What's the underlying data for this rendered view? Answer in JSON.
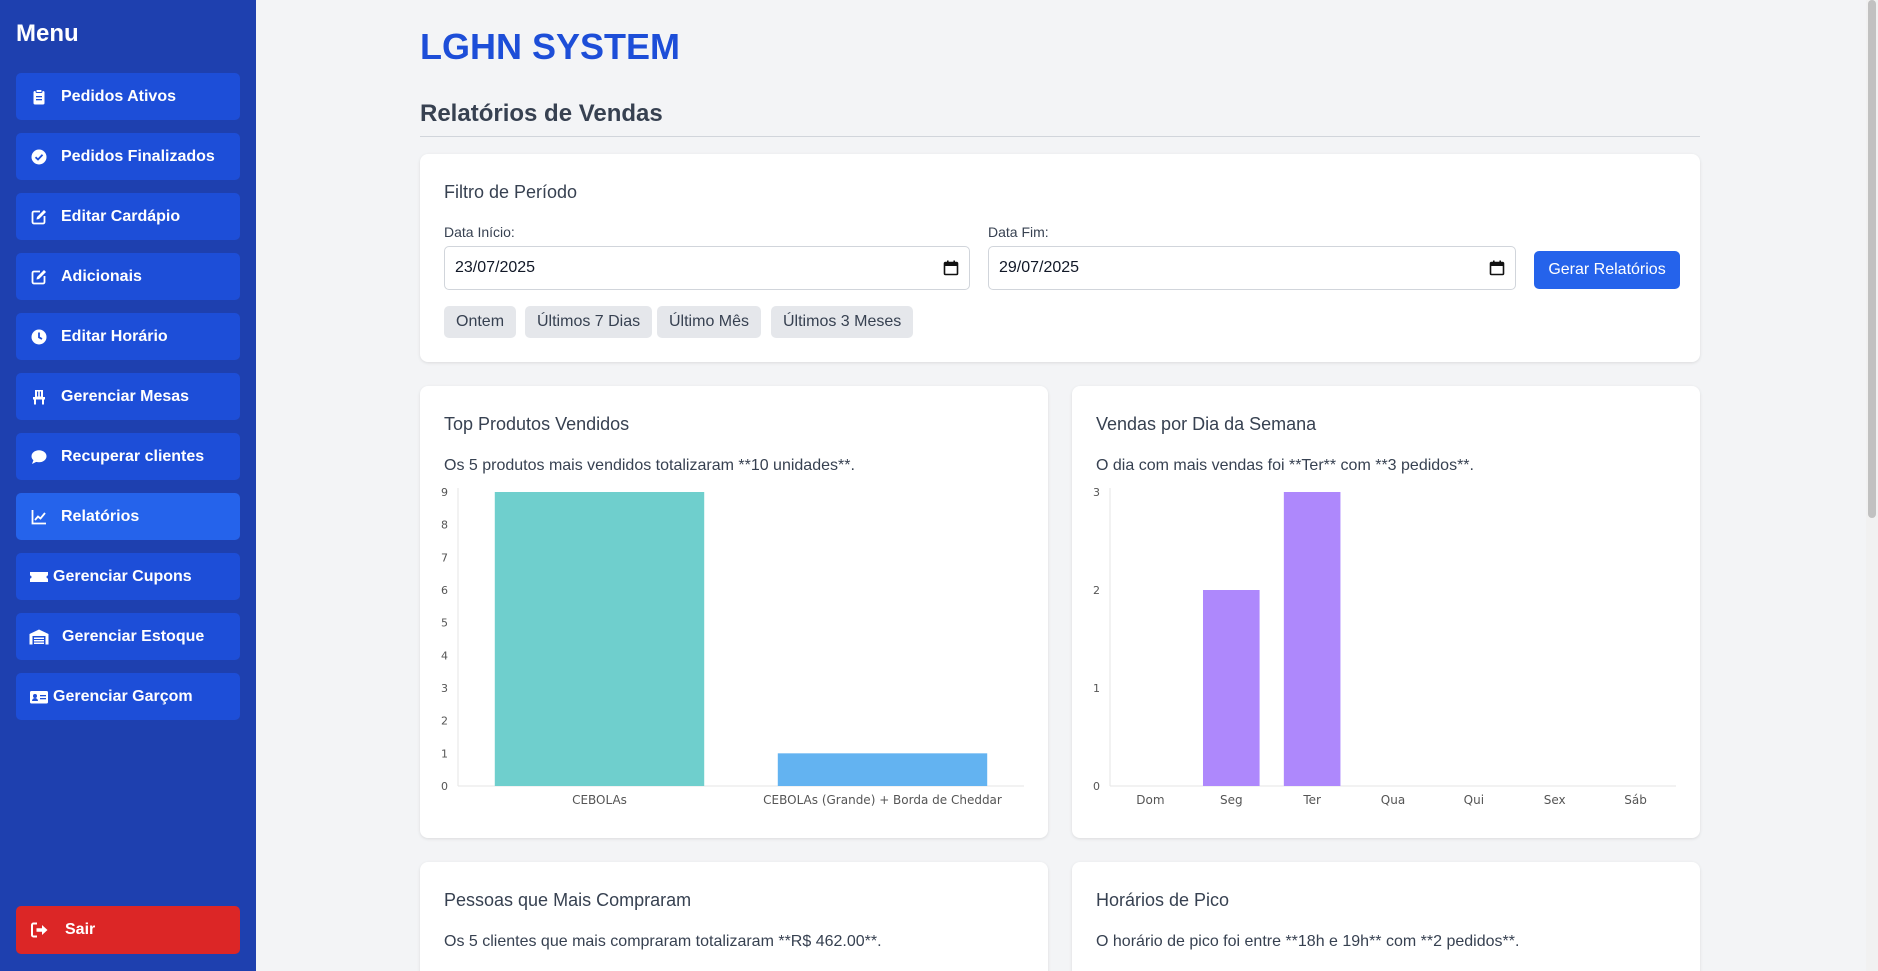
{
  "sidebar": {
    "title": "Menu",
    "items": [
      {
        "label": "Pedidos Ativos",
        "icon": "clipboard-icon"
      },
      {
        "label": "Pedidos Finalizados",
        "icon": "check-circle-icon"
      },
      {
        "label": "Editar Cardápio",
        "icon": "edit-icon"
      },
      {
        "label": "Adicionais",
        "icon": "edit-icon"
      },
      {
        "label": "Editar Horário",
        "icon": "clock-icon"
      },
      {
        "label": "Gerenciar Mesas",
        "icon": "chair-icon"
      },
      {
        "label": "Recuperar clientes",
        "icon": "chat-icon"
      },
      {
        "label": "Relatórios",
        "icon": "chart-line-icon",
        "active": true
      },
      {
        "label": "Gerenciar Cupons",
        "icon": "ticket-icon"
      },
      {
        "label": "Gerenciar Estoque",
        "icon": "warehouse-icon"
      },
      {
        "label": "Gerenciar Garçom",
        "icon": "id-card-icon"
      }
    ],
    "logout_label": "Sair"
  },
  "header": {
    "app_title": "LGHN SYSTEM",
    "section_title": "Relatórios de Vendas"
  },
  "filter": {
    "title": "Filtro de Período",
    "start_label": "Data Início:",
    "start_value": "23/07/2025",
    "end_label": "Data Fim:",
    "end_value": "29/07/2025",
    "generate_label": "Gerar Relatórios",
    "quick": [
      "Ontem",
      "Últimos 7 Dias",
      "Último Mês",
      "Últimos 3 Meses"
    ]
  },
  "top_products": {
    "title": "Top Produtos Vendidos",
    "summary": "Os 5 produtos mais vendidos totalizaram **10 unidades**."
  },
  "weekday_sales": {
    "title": "Vendas por Dia da Semana",
    "summary": "O dia com mais vendas foi **Ter** com **3 pedidos**."
  },
  "top_customers": {
    "title": "Pessoas que Mais Compraram",
    "summary": "Os 5 clientes que mais compraram totalizaram **R$ 462.00**."
  },
  "peak_hours": {
    "title": "Horários de Pico",
    "summary": "O horário de pico foi entre **18h e 19h** com **2 pedidos**."
  },
  "colors": {
    "sidebar_bg": "#1e40af",
    "nav_item": "#1d4ed8",
    "accent": "#2563eb",
    "danger": "#dc2626",
    "bar_teal": "#6fcfcd",
    "bar_blue": "#63b3f1",
    "bar_purple": "#ae88fc"
  },
  "chart_data": [
    {
      "type": "bar",
      "categories": [
        "CEBOLAs",
        "CEBOLAs (Grande) + Borda de Cheddar"
      ],
      "values": [
        9,
        1
      ],
      "ylim": [
        0,
        9
      ],
      "yticks": [
        0,
        1,
        2,
        3,
        4,
        5,
        6,
        7,
        8,
        9
      ],
      "colors": [
        "#6fcfcd",
        "#63b3f1"
      ],
      "grid": false
    },
    {
      "type": "bar",
      "categories": [
        "Dom",
        "Seg",
        "Ter",
        "Qua",
        "Qui",
        "Sex",
        "Sáb"
      ],
      "values": [
        0,
        2,
        3,
        0,
        0,
        0,
        0
      ],
      "ylim": [
        0,
        3
      ],
      "yticks": [
        0,
        1,
        2,
        3
      ],
      "colors": [
        "#ae88fc"
      ],
      "grid": false
    }
  ]
}
